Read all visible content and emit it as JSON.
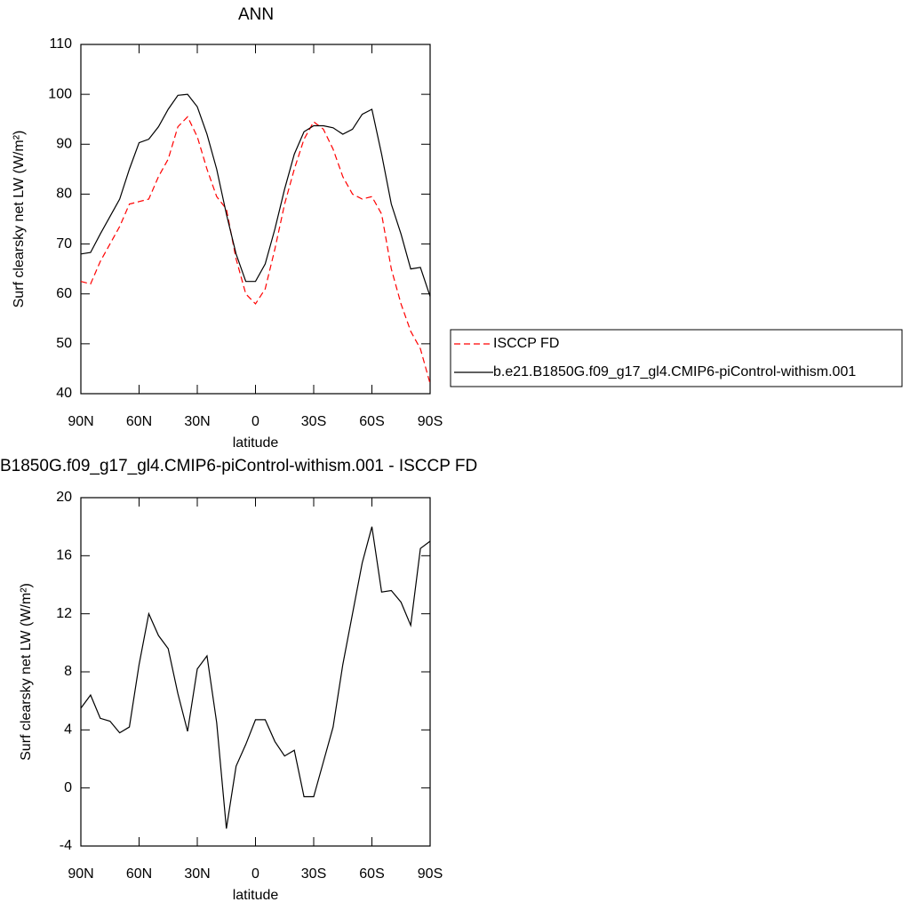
{
  "chart_data": [
    {
      "type": "line",
      "title": "ANN",
      "xlabel": "latitude",
      "ylabel": "Surf clearsky net LW (W/m²)",
      "x": [
        90,
        85,
        80,
        75,
        70,
        65,
        60,
        55,
        50,
        45,
        40,
        35,
        30,
        25,
        20,
        15,
        10,
        5,
        0,
        -5,
        -10,
        -15,
        -20,
        -25,
        -30,
        -35,
        -40,
        -45,
        -50,
        -55,
        -60,
        -65,
        -70,
        -75,
        -80,
        -85,
        -90
      ],
      "xlim": [
        90,
        -90
      ],
      "xticks": [
        {
          "value": 90,
          "label": "90N"
        },
        {
          "value": 60,
          "label": "60N"
        },
        {
          "value": 30,
          "label": "30N"
        },
        0,
        {
          "value": -30,
          "label": "30S"
        },
        {
          "value": -60,
          "label": "60S"
        },
        {
          "value": -90,
          "label": "90S"
        }
      ],
      "ylim": [
        40,
        110
      ],
      "yticks": [
        40,
        50,
        60,
        70,
        80,
        90,
        100,
        110
      ],
      "legend": "outside-right",
      "series": [
        {
          "name": "ISCCP FD",
          "color": "#ff0000",
          "dashed": true,
          "values": [
            62.5,
            62,
            66.5,
            70,
            73.5,
            78,
            78.5,
            79,
            83.5,
            87,
            93.5,
            95.5,
            91.5,
            85,
            79.5,
            77,
            67,
            60,
            58,
            61,
            69,
            78,
            85,
            91,
            94.5,
            93,
            89,
            83.5,
            80,
            79,
            79.5,
            76,
            65,
            58,
            52.5,
            49,
            42
          ]
        },
        {
          "name": "b.e21.B1850G.f09_g17_gl4.CMIP6-piControl-withism.001",
          "color": "#000000",
          "dashed": false,
          "values": [
            68,
            68.3,
            72,
            75.5,
            79,
            85,
            90.3,
            91,
            93.5,
            97,
            99.8,
            100,
            97.5,
            92,
            85,
            76,
            68,
            62.5,
            62.5,
            66,
            73,
            81,
            88,
            92.5,
            93.7,
            93.7,
            93.3,
            92,
            93,
            96,
            97,
            88,
            78,
            72,
            65,
            65.3,
            59.5
          ]
        }
      ]
    },
    {
      "type": "line",
      "title": "B1850G.f09_g17_gl4.CMIP6-piControl-withism.001 - ISCCP FD",
      "xlabel": "latitude",
      "ylabel": "Surf clearsky net LW (W/m²)",
      "x": [
        90,
        85,
        80,
        75,
        70,
        65,
        60,
        55,
        50,
        45,
        40,
        35,
        30,
        25,
        20,
        15,
        10,
        5,
        0,
        -5,
        -10,
        -15,
        -20,
        -25,
        -30,
        -35,
        -40,
        -45,
        -50,
        -55,
        -60,
        -65,
        -70,
        -75,
        -80,
        -85,
        -90
      ],
      "xlim": [
        90,
        -90
      ],
      "xticks": [
        {
          "value": 90,
          "label": "90N"
        },
        {
          "value": 60,
          "label": "60N"
        },
        {
          "value": 30,
          "label": "30N"
        },
        0,
        {
          "value": -30,
          "label": "30S"
        },
        {
          "value": -60,
          "label": "60S"
        },
        {
          "value": -90,
          "label": "90S"
        }
      ],
      "ylim": [
        -4,
        20
      ],
      "yticks": [
        -4,
        0,
        4,
        8,
        12,
        16,
        20
      ],
      "series": [
        {
          "color": "#000000",
          "dashed": false,
          "values": [
            5.5,
            6.4,
            4.8,
            4.6,
            3.8,
            4.2,
            8.5,
            12,
            10.5,
            9.6,
            6.5,
            3.9,
            8.2,
            9.1,
            4.5,
            -2.8,
            1.5,
            3.0,
            4.7,
            4.7,
            3.2,
            2.2,
            2.6,
            -0.6,
            -0.6,
            1.8,
            4.2,
            8.5,
            12,
            15.5,
            18,
            13.5,
            13.6,
            12.8,
            11.2,
            16.5,
            17
          ]
        }
      ]
    }
  ]
}
